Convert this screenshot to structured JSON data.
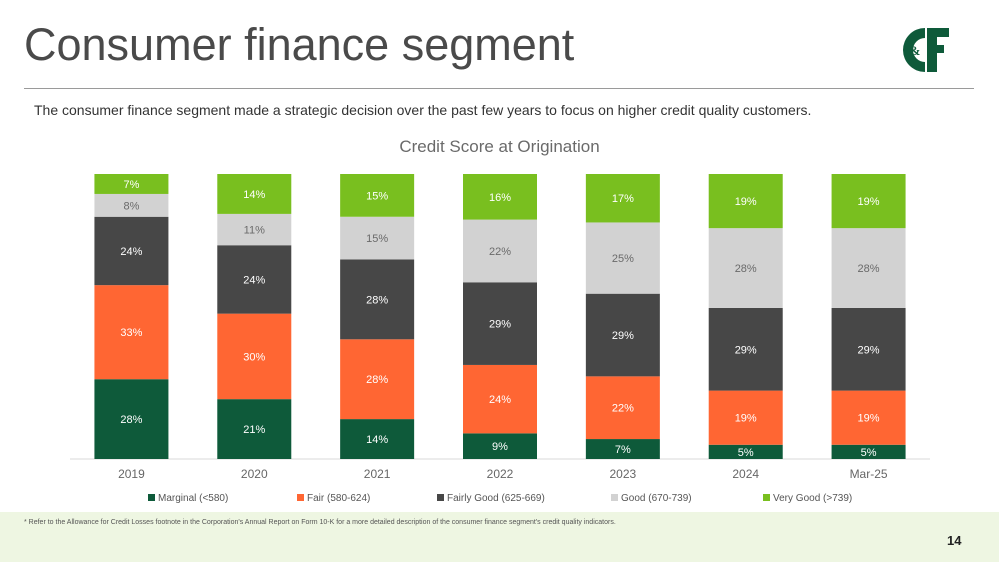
{
  "header": {
    "title": "Consumer finance segment",
    "subtitle": "The consumer finance segment made a strategic decision over the past few years to focus on higher credit quality customers.",
    "logo_text": "C&F"
  },
  "chart_data": {
    "type": "bar",
    "stacked": true,
    "title": "Credit Score at Origination",
    "xlabel": "",
    "ylabel": "",
    "categories": [
      "2019",
      "2020",
      "2021",
      "2022",
      "2023",
      "2024",
      "Mar-25"
    ],
    "series": [
      {
        "name": "Marginal (<580)",
        "color": "#0e5a3a",
        "values": [
          28,
          21,
          14,
          9,
          7,
          5,
          5
        ]
      },
      {
        "name": "Fair (580-624)",
        "color": "#ff6633",
        "values": [
          33,
          30,
          28,
          24,
          22,
          19,
          19
        ]
      },
      {
        "name": "Fairly Good (625-669)",
        "color": "#474747",
        "values": [
          24,
          24,
          28,
          29,
          29,
          29,
          29
        ]
      },
      {
        "name": "Good (670-739)",
        "color": "#d2d2d2",
        "values": [
          8,
          11,
          15,
          22,
          25,
          28,
          28
        ]
      },
      {
        "name": "Very Good (>739)",
        "color": "#79bf1f",
        "values": [
          7,
          14,
          15,
          16,
          17,
          19,
          19
        ]
      }
    ],
    "label_suffix": "%",
    "grid": false,
    "legend_position": "bottom"
  },
  "footer": {
    "footnote": "* Refer to the Allowance for Credit Losses footnote in the Corporation's Annual Report on Form 10-K for a more detailed description of the consumer finance segment's credit quality indicators.",
    "page_number": "14"
  },
  "colors": {
    "logo_green": "#0e5a3a",
    "footer_band": "#eef6e2"
  }
}
